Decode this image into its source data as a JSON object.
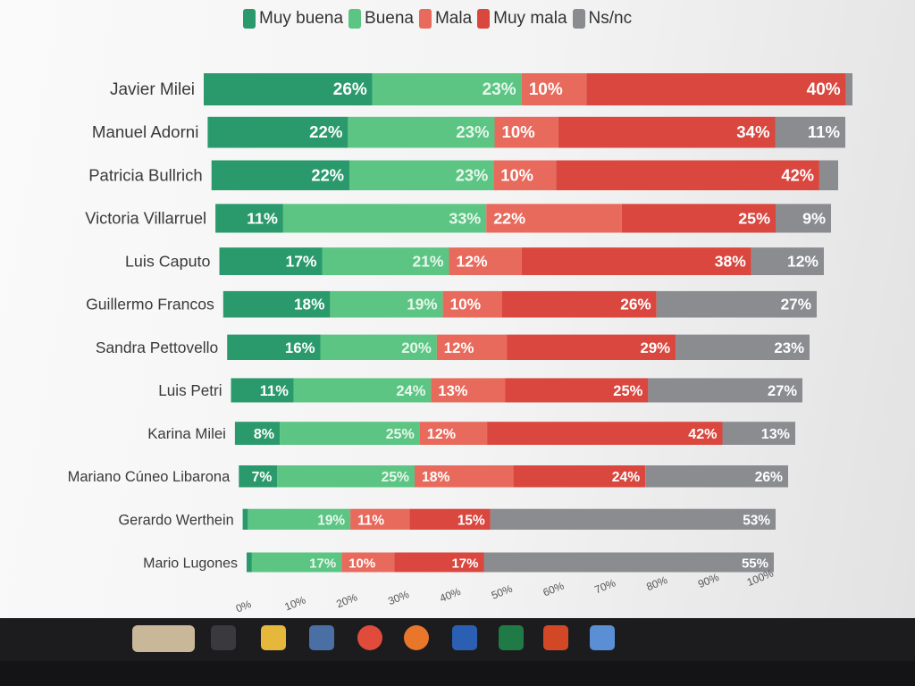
{
  "chart_data": {
    "type": "bar",
    "orientation": "horizontal",
    "stacked": true,
    "legend_position": "top",
    "categories": [
      "Javier Milei",
      "Manuel Adorni",
      "Patricia Bullrich",
      "Victoria Villarruel",
      "Luis Caputo",
      "Guillermo Francos",
      "Sandra Pettovello",
      "Luis Petri",
      "Karina Milei",
      "Mariano Cúneo Libarona",
      "Gerardo Werthein",
      "Mario Lugones"
    ],
    "series": [
      {
        "name": "Muy buena",
        "color": "#2a9a6c",
        "values": [
          26,
          22,
          22,
          11,
          17,
          18,
          16,
          11,
          8,
          7,
          1,
          1
        ]
      },
      {
        "name": "Buena",
        "color": "#5cc583",
        "values": [
          23,
          23,
          23,
          33,
          21,
          19,
          20,
          24,
          25,
          25,
          19,
          17
        ]
      },
      {
        "name": "Mala",
        "color": "#e86a5c",
        "values": [
          10,
          10,
          10,
          22,
          12,
          10,
          12,
          13,
          12,
          18,
          11,
          10
        ]
      },
      {
        "name": "Muy mala",
        "color": "#d9473f",
        "values": [
          40,
          34,
          42,
          25,
          38,
          26,
          29,
          25,
          42,
          24,
          15,
          17
        ]
      },
      {
        "name": "Ns/nc",
        "color": "#8a8c90",
        "values": [
          1,
          11,
          3,
          9,
          12,
          27,
          23,
          27,
          13,
          26,
          53,
          55
        ]
      }
    ],
    "labels": [
      [
        "26%",
        "23%",
        "10%",
        "40%",
        ""
      ],
      [
        "22%",
        "23%",
        "10%",
        "34%",
        "11%"
      ],
      [
        "22%",
        "23%",
        "10%",
        "42%",
        ""
      ],
      [
        "11%",
        "33%",
        "22%",
        "25%",
        "9%"
      ],
      [
        "17%",
        "21%",
        "12%",
        "38%",
        "12%"
      ],
      [
        "18%",
        "19%",
        "10%",
        "26%",
        "27%"
      ],
      [
        "16%",
        "20%",
        "12%",
        "29%",
        "23%"
      ],
      [
        "11%",
        "24%",
        "13%",
        "25%",
        "27%"
      ],
      [
        "8%",
        "25%",
        "12%",
        "42%",
        "13%"
      ],
      [
        "7%",
        "25%",
        "18%",
        "24%",
        "26%"
      ],
      [
        "",
        "19%",
        "11%",
        "15%",
        "53%"
      ],
      [
        "",
        "17%",
        "10%",
        "17%",
        "55%"
      ]
    ],
    "x_ticks": [
      "0%",
      "10%",
      "20%",
      "30%",
      "40%",
      "50%",
      "60%",
      "70%",
      "80%",
      "90%",
      "100%"
    ],
    "xlim": [
      0,
      100
    ]
  },
  "taskbar": {
    "icons": [
      {
        "name": "widgets-icon",
        "color": "#c9b79a"
      },
      {
        "name": "task-view-icon",
        "color": "#3a3a3e"
      },
      {
        "name": "file-explorer-icon",
        "color": "#e5b73b"
      },
      {
        "name": "mascot-app-icon",
        "color": "#4a6fa5"
      },
      {
        "name": "chrome-icon",
        "color": "#e04b3c"
      },
      {
        "name": "firefox-icon",
        "color": "#e8762b"
      },
      {
        "name": "word-icon",
        "color": "#2b5fb4"
      },
      {
        "name": "excel-icon",
        "color": "#1f7a45"
      },
      {
        "name": "powerpoint-icon",
        "color": "#d24726"
      },
      {
        "name": "photos-icon",
        "color": "#5a8fd6"
      }
    ]
  }
}
